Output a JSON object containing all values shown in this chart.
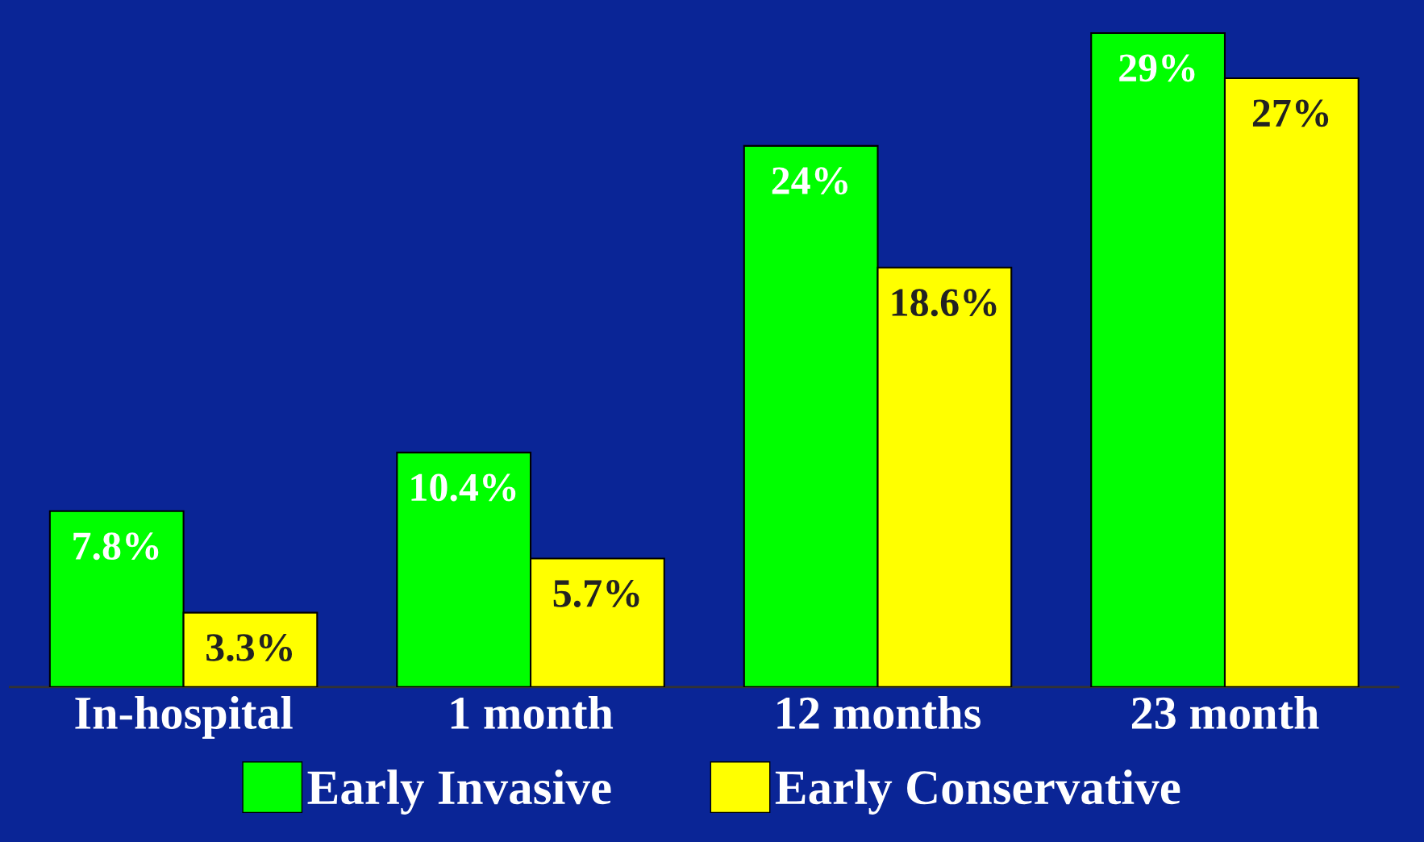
{
  "chart_data": {
    "type": "bar",
    "categories": [
      "In-hospital",
      "1 month",
      "12 months",
      "23 month"
    ],
    "series": [
      {
        "name": "Early Invasive",
        "color": "#00ff00",
        "values": [
          7.8,
          10.4,
          24,
          29
        ],
        "value_labels": [
          "7.8%",
          "10.4%",
          "24%",
          "29%"
        ]
      },
      {
        "name": "Early Conservative",
        "color": "#ffff00",
        "values": [
          3.3,
          5.7,
          18.6,
          27
        ],
        "value_labels": [
          "3.3%",
          "5.7%",
          "18.6%",
          "27%"
        ]
      }
    ],
    "legend": "bottom",
    "grid": false
  }
}
